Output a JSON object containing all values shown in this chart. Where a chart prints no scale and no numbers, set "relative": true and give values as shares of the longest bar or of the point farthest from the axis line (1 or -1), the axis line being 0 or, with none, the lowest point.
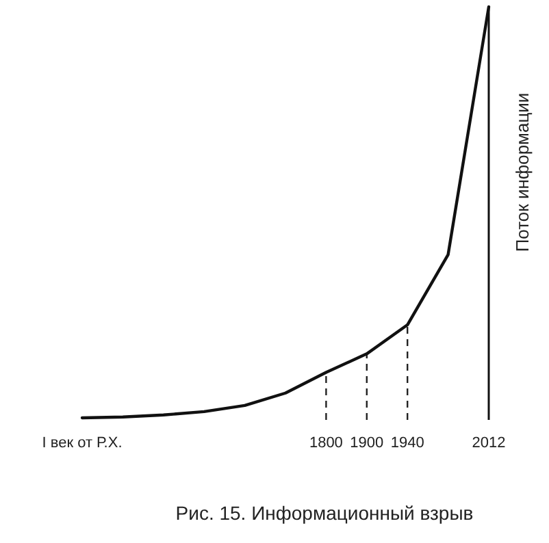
{
  "chart_data": {
    "type": "line",
    "relative": true,
    "ylabel": "Поток информации",
    "annotations": [
      "Рис. 15. Информационный взрыв"
    ],
    "categories": [
      "I век от Р.Х.",
      null,
      null,
      null,
      null,
      null,
      "1800",
      "1900",
      "1940",
      null,
      "2012"
    ],
    "series": [
      {
        "color": "#111111",
        "values": [
          0.005,
          0.007,
          0.012,
          0.02,
          0.035,
          0.065,
          0.115,
          0.16,
          0.23,
          0.4,
          1
        ]
      }
    ],
    "ref_lines": [
      {
        "axis": "x",
        "value": "1800",
        "line_style": "dashed"
      },
      {
        "axis": "x",
        "value": "1900",
        "line_style": "dashed"
      },
      {
        "axis": "x",
        "value": "1940",
        "line_style": "dashed"
      }
    ],
    "marker": "none",
    "line_style": "solid"
  }
}
